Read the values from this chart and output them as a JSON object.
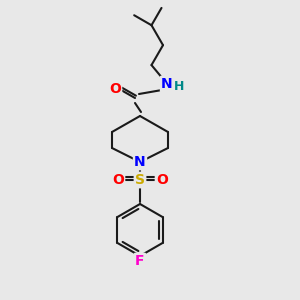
{
  "bg_color": "#e8e8e8",
  "bond_color": "#1a1a1a",
  "bond_lw": 1.5,
  "atom_colors": {
    "O": "#ff0000",
    "N_amide": "#0000ff",
    "N_pip": "#0000ff",
    "S": "#ccaa00",
    "F": "#ff00cc",
    "H": "#008888",
    "C": "#1a1a1a"
  },
  "font_size_atoms": 10,
  "font_size_H": 9
}
